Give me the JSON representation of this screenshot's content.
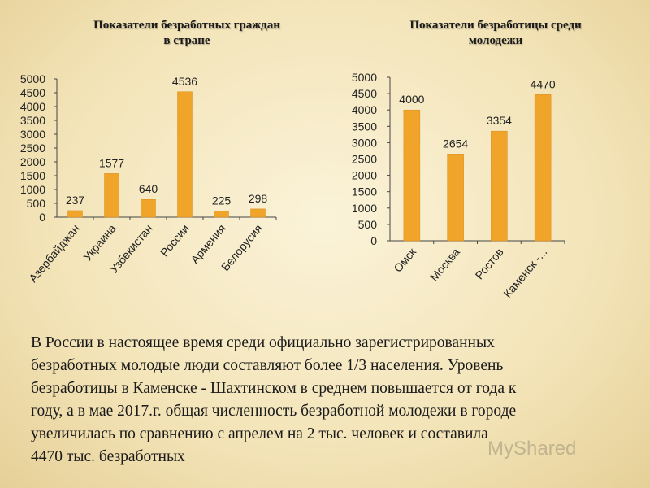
{
  "chart_data": [
    {
      "type": "bar",
      "title": "Показатели безработных граждан в стране",
      "title_lines": [
        "Показатели безработных граждан",
        "в стране"
      ],
      "categories": [
        "Азербайджан",
        "Украина",
        "Узбекистан",
        "России",
        "Армения",
        "Белорусия"
      ],
      "values": [
        237,
        1577,
        640,
        4536,
        225,
        298
      ],
      "data_labels": [
        "237",
        "1577",
        "640",
        "4536",
        "225",
        "298"
      ],
      "ylim": [
        0,
        5000
      ],
      "yticks": [
        0,
        500,
        1000,
        1500,
        2000,
        2500,
        3000,
        3500,
        4000,
        4500,
        5000
      ],
      "ytick_labels": [
        "0",
        "500",
        "1000",
        "1500",
        "2000",
        "2500",
        "3000",
        "3500",
        "4000",
        "4500",
        "5000"
      ],
      "xlabel": "",
      "ylabel": "",
      "grid": false,
      "bar_color": "#f0a42a"
    },
    {
      "type": "bar",
      "title": "Показатели безработицы среди молодежи",
      "title_lines": [
        "Показатели безработицы среди",
        "молодежи"
      ],
      "categories": [
        "Омск",
        "Москва",
        "Ростов",
        "Каменск -..."
      ],
      "values": [
        4000,
        2654,
        3354,
        4470
      ],
      "data_labels": [
        "4000",
        "2654",
        "3354",
        "4470"
      ],
      "ylim": [
        0,
        5000
      ],
      "yticks": [
        0,
        500,
        1000,
        1500,
        2000,
        2500,
        3000,
        3500,
        4000,
        4500,
        5000
      ],
      "ytick_labels": [
        "0",
        "500",
        "1000",
        "1500",
        "2000",
        "2500",
        "3000",
        "3500",
        "4000",
        "4500",
        "5000"
      ],
      "xlabel": "",
      "ylabel": "",
      "grid": false,
      "bar_color": "#f0a42a"
    }
  ],
  "caption": {
    "lines": [
      "В России  в настоящее время среди официально зарегистрированных",
      "безработных молодые люди составляют более 1/3 населения. Уровень",
      "безработицы в Каменске - Шахтинском в среднем повышается от года к",
      "году, а в мае 2017.г. общая численность безработной молодежи в городе",
      "увеличилась по сравнению с апрелем на 2 тыс. человек и составила",
      "4470 тыс. безработных"
    ]
  },
  "watermark": "MyShared"
}
